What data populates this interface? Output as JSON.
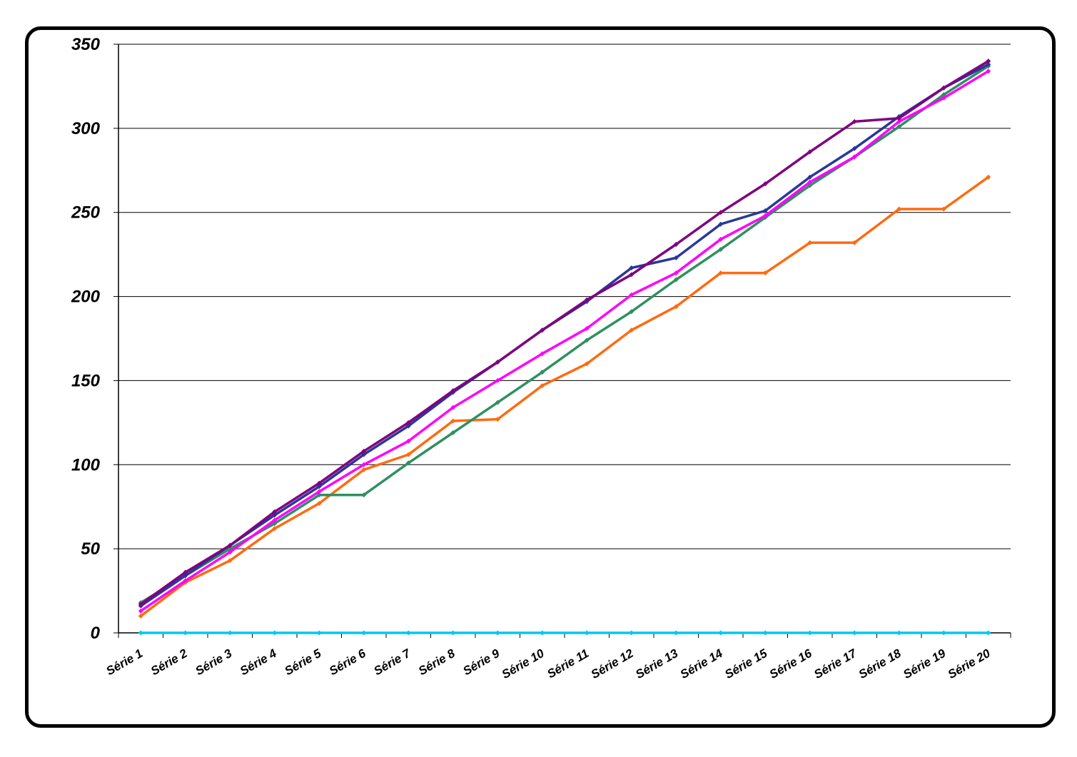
{
  "chart_data": {
    "type": "line",
    "title": "",
    "xlabel": "",
    "ylabel": "",
    "ylim": [
      0,
      350
    ],
    "yticks": [
      "0",
      "50",
      "100",
      "150",
      "200",
      "250",
      "300",
      "350"
    ],
    "grid": true,
    "legend": "none",
    "categories": [
      "Série 1",
      "Série 2",
      "Série 3",
      "Série 4",
      "Série 5",
      "Série 6",
      "Série 7",
      "Série 8",
      "Série 9",
      "Série 10",
      "Série 11",
      "Série 12",
      "Série 13",
      "Série 14",
      "Série 15",
      "Série 16",
      "Série 17",
      "Série 18",
      "Série 19",
      "Série 20"
    ],
    "series": [
      {
        "color": "#00c8f0",
        "values": [
          0,
          0,
          0,
          0,
          0,
          0,
          0,
          0,
          0,
          0,
          0,
          0,
          0,
          0,
          0,
          0,
          0,
          0,
          0,
          0
        ]
      },
      {
        "color": "#ff6a10",
        "values": [
          10,
          30,
          43,
          62,
          77,
          97,
          106,
          126,
          127,
          147,
          160,
          180,
          194,
          214,
          214,
          232,
          232,
          252,
          252,
          271
        ]
      },
      {
        "color": "#2e9060",
        "values": [
          18,
          34,
          50,
          65,
          82,
          82,
          101,
          119,
          137,
          155,
          174,
          191,
          210,
          228,
          247,
          266,
          283,
          301,
          320,
          337
        ]
      },
      {
        "color": "#ff00ff",
        "values": [
          13,
          31,
          48,
          67,
          84,
          100,
          114,
          134,
          150,
          166,
          181,
          201,
          214,
          234,
          248,
          268,
          283,
          304,
          318,
          334
        ]
      },
      {
        "color": "#283898",
        "values": [
          16,
          34,
          52,
          70,
          87,
          106,
          123,
          143,
          161,
          180,
          197,
          217,
          223,
          243,
          251,
          271,
          288,
          307,
          324,
          338
        ]
      },
      {
        "color": "#800080",
        "values": [
          17,
          36,
          52,
          72,
          89,
          108,
          125,
          144,
          161,
          180,
          198,
          213,
          231,
          250,
          267,
          286,
          304,
          306,
          324,
          340
        ]
      }
    ]
  }
}
